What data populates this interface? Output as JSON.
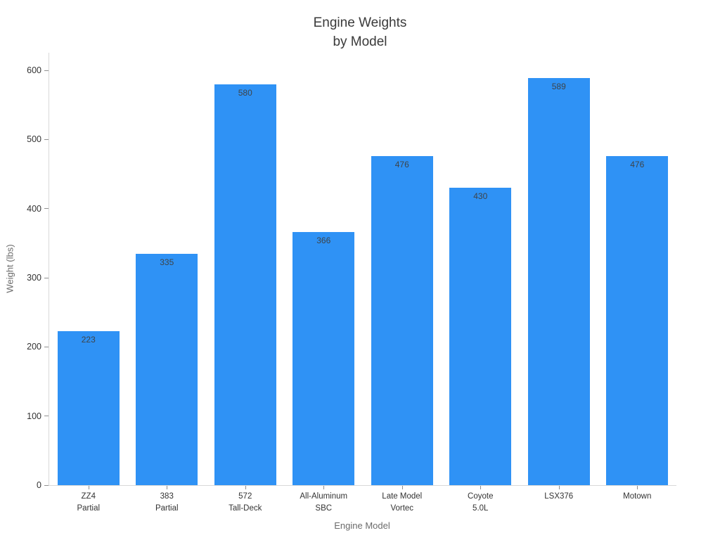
{
  "figure": {
    "title": "Engine Weights\nby Model"
  },
  "chart_data": {
    "type": "bar",
    "title": "Engine Weights\nby Model",
    "xlabel": "Engine Model",
    "ylabel": "Weight (lbs)",
    "categories": [
      "ZZ4\nPartial",
      "383\nPartial",
      "572\nTall-Deck",
      "All-Aluminum\nSBC",
      "Late Model\nVortec",
      "Coyote\n5.0L",
      "LSX376",
      "Motown"
    ],
    "values": [
      223,
      335,
      580,
      366,
      476,
      430,
      589,
      476
    ],
    "bar_value_labels": [
      "223",
      "335",
      "580",
      "366",
      "476",
      "430",
      "589",
      "476"
    ],
    "ylim": [
      0,
      600
    ],
    "yticks": [
      0,
      100,
      200,
      300,
      400,
      500,
      600
    ],
    "grid": false,
    "legend": false,
    "colors": {
      "bar": "#2f92f5",
      "value_label": "#3e4449",
      "tick_label": "#333333",
      "axis_title": "#6b6b6b",
      "title": "#3a3a3a",
      "axis_line": "#d8d8d8",
      "tick_mark": "#8f8f8f",
      "background": "#ffffff"
    }
  }
}
